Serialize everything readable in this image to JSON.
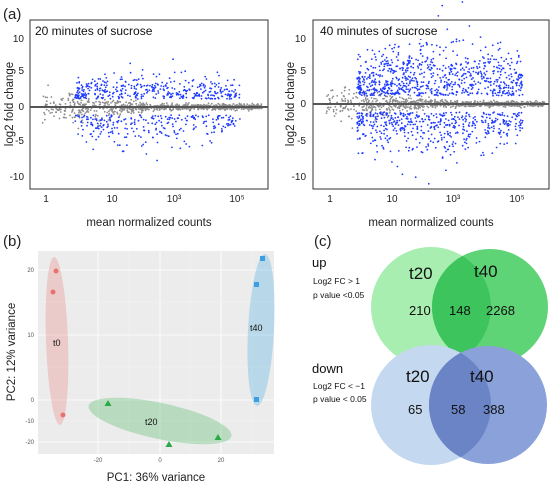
{
  "panel_labels": [
    "(a)",
    "(b)",
    "(c)"
  ],
  "ma_plots": {
    "y_axis_label": "log2 fold change",
    "x_axis_label": "mean normalized counts",
    "x_ticks": [
      "1",
      "10",
      "10³",
      "10⁵"
    ],
    "y_ticks": [
      "10",
      "5",
      "0",
      "-5",
      "-10"
    ],
    "colors": {
      "significant": "#1f3bff",
      "not_significant": "#8c8c8c",
      "zero_line": "#555555"
    },
    "plots": [
      {
        "title": "20 minutes of sucrose"
      },
      {
        "title": "40 minutes of sucrose"
      }
    ]
  },
  "pca": {
    "x_axis_label": "PC1: 36% variance",
    "y_axis_label": "PC2: 12% variance",
    "x_ticks": [
      "-20",
      "0",
      "20"
    ],
    "y_ticks": [
      "20",
      "10",
      "0",
      "-10",
      "-20"
    ],
    "groups": [
      {
        "label": "t0",
        "color": "#e8726e",
        "fill": "rgba(236,140,140,0.35)",
        "marker": "circle"
      },
      {
        "label": "t20",
        "color": "#2aa84a",
        "fill": "rgba(90,190,110,0.35)",
        "marker": "triangle"
      },
      {
        "label": "t40",
        "color": "#3a9ee0",
        "fill": "rgba(90,180,230,0.35)",
        "marker": "square"
      }
    ]
  },
  "venn": {
    "up": {
      "heading": "up",
      "criteria": [
        "Log2 FC > 1",
        "p value <0.05"
      ],
      "left_label": "t20",
      "right_label": "t40",
      "left_only": "210",
      "overlap": "148",
      "right_only": "2268",
      "left_color": "#a8eeb0",
      "right_color": "#5fd477",
      "overlap_color": "#3dc45c"
    },
    "down": {
      "heading": "down",
      "criteria": [
        "Log2 FC < −1",
        "p value < 0.05"
      ],
      "left_label": "t20",
      "right_label": "t40",
      "left_only": "65",
      "overlap": "58",
      "right_only": "388",
      "left_color": "#c4d8f0",
      "right_color": "#8aa2d9",
      "overlap_color": "#6a84c6"
    }
  }
}
